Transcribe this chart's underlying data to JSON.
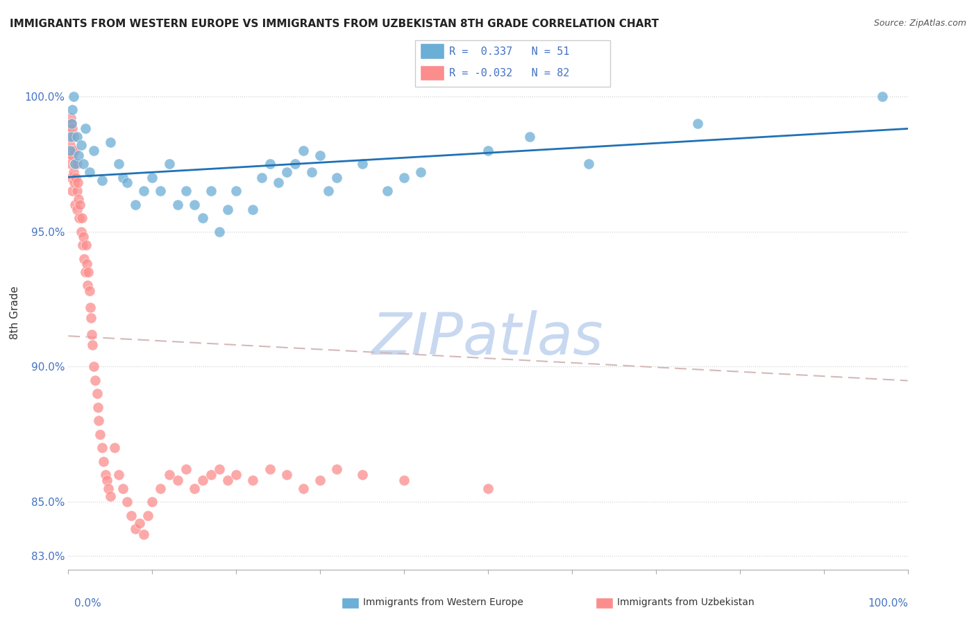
{
  "title": "IMMIGRANTS FROM WESTERN EUROPE VS IMMIGRANTS FROM UZBEKISTAN 8TH GRADE CORRELATION CHART",
  "source": "Source: ZipAtlas.com",
  "ylabel": "8th Grade",
  "ytick_labels": [
    "83.0%",
    "85.0%",
    "90.0%",
    "95.0%",
    "100.0%"
  ],
  "ytick_values": [
    0.83,
    0.85,
    0.9,
    0.95,
    1.0
  ],
  "xlim": [
    0.0,
    1.0
  ],
  "ylim": [
    0.825,
    1.015
  ],
  "color_blue": "#6baed6",
  "color_pink": "#fc8d8d",
  "color_trendline_blue": "#2171b5",
  "color_trendline_pink": "#d4a0a0",
  "watermark_color": "#c8d8f0",
  "blue_scatter_x": [
    0.002,
    0.003,
    0.004,
    0.005,
    0.006,
    0.008,
    0.01,
    0.012,
    0.015,
    0.018,
    0.02,
    0.025,
    0.03,
    0.04,
    0.05,
    0.06,
    0.065,
    0.07,
    0.08,
    0.09,
    0.1,
    0.11,
    0.12,
    0.13,
    0.14,
    0.15,
    0.16,
    0.17,
    0.18,
    0.19,
    0.2,
    0.22,
    0.23,
    0.24,
    0.25,
    0.26,
    0.27,
    0.28,
    0.29,
    0.3,
    0.31,
    0.32,
    0.35,
    0.38,
    0.4,
    0.42,
    0.5,
    0.55,
    0.62,
    0.75,
    0.97
  ],
  "blue_scatter_y": [
    0.98,
    0.985,
    0.99,
    0.995,
    1.0,
    0.975,
    0.985,
    0.978,
    0.982,
    0.975,
    0.988,
    0.972,
    0.98,
    0.969,
    0.983,
    0.975,
    0.97,
    0.968,
    0.96,
    0.965,
    0.97,
    0.965,
    0.975,
    0.96,
    0.965,
    0.96,
    0.955,
    0.965,
    0.95,
    0.958,
    0.965,
    0.958,
    0.97,
    0.975,
    0.968,
    0.972,
    0.975,
    0.98,
    0.972,
    0.978,
    0.965,
    0.97,
    0.975,
    0.965,
    0.97,
    0.972,
    0.98,
    0.985,
    0.975,
    0.99,
    1.0
  ],
  "pink_scatter_x": [
    0.001,
    0.002,
    0.002,
    0.003,
    0.003,
    0.003,
    0.004,
    0.004,
    0.004,
    0.005,
    0.005,
    0.005,
    0.006,
    0.006,
    0.007,
    0.007,
    0.008,
    0.008,
    0.009,
    0.01,
    0.01,
    0.01,
    0.011,
    0.012,
    0.013,
    0.014,
    0.015,
    0.016,
    0.017,
    0.018,
    0.019,
    0.02,
    0.021,
    0.022,
    0.023,
    0.024,
    0.025,
    0.026,
    0.027,
    0.028,
    0.029,
    0.03,
    0.032,
    0.034,
    0.035,
    0.036,
    0.038,
    0.04,
    0.042,
    0.044,
    0.046,
    0.048,
    0.05,
    0.055,
    0.06,
    0.065,
    0.07,
    0.075,
    0.08,
    0.085,
    0.09,
    0.095,
    0.1,
    0.11,
    0.12,
    0.13,
    0.14,
    0.15,
    0.16,
    0.17,
    0.18,
    0.19,
    0.2,
    0.22,
    0.24,
    0.26,
    0.28,
    0.3,
    0.32,
    0.35,
    0.4,
    0.5
  ],
  "pink_scatter_y": [
    0.988,
    0.982,
    0.978,
    0.992,
    0.985,
    0.975,
    0.99,
    0.98,
    0.97,
    0.988,
    0.978,
    0.965,
    0.985,
    0.972,
    0.98,
    0.968,
    0.975,
    0.96,
    0.97,
    0.965,
    0.975,
    0.958,
    0.968,
    0.962,
    0.955,
    0.96,
    0.95,
    0.955,
    0.945,
    0.948,
    0.94,
    0.935,
    0.945,
    0.938,
    0.93,
    0.935,
    0.928,
    0.922,
    0.918,
    0.912,
    0.908,
    0.9,
    0.895,
    0.89,
    0.885,
    0.88,
    0.875,
    0.87,
    0.865,
    0.86,
    0.858,
    0.855,
    0.852,
    0.87,
    0.86,
    0.855,
    0.85,
    0.845,
    0.84,
    0.842,
    0.838,
    0.845,
    0.85,
    0.855,
    0.86,
    0.858,
    0.862,
    0.855,
    0.858,
    0.86,
    0.862,
    0.858,
    0.86,
    0.858,
    0.862,
    0.86,
    0.855,
    0.858,
    0.862,
    0.86,
    0.858,
    0.855
  ]
}
